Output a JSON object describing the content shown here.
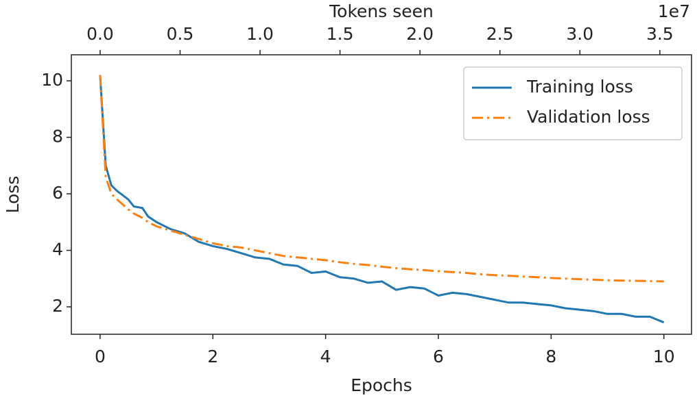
{
  "chart_data": {
    "type": "line",
    "xlabel": "Epochs",
    "ylabel": "Loss",
    "x2label": "Tokens seen",
    "x2_offset_label": "1e7",
    "x": [
      0,
      0.1,
      0.2,
      0.3,
      0.5,
      0.6,
      0.75,
      0.85,
      1.0,
      1.25,
      1.5,
      1.75,
      2.0,
      2.25,
      2.5,
      2.75,
      3.0,
      3.25,
      3.5,
      3.75,
      4.0,
      4.25,
      4.5,
      4.75,
      5.0,
      5.25,
      5.5,
      5.75,
      6.0,
      6.25,
      6.5,
      6.75,
      7.0,
      7.25,
      7.5,
      7.75,
      8.0,
      8.25,
      8.5,
      8.75,
      9.0,
      9.25,
      9.5,
      9.75,
      10.0
    ],
    "series": [
      {
        "name": "Training loss",
        "color": "#1f77b4",
        "linestyle": "solid",
        "values": [
          10.2,
          7.0,
          6.3,
          6.1,
          5.8,
          5.55,
          5.5,
          5.2,
          5.0,
          4.75,
          4.6,
          4.3,
          4.15,
          4.05,
          3.9,
          3.75,
          3.7,
          3.5,
          3.45,
          3.2,
          3.25,
          3.05,
          3.0,
          2.85,
          2.9,
          2.6,
          2.7,
          2.65,
          2.4,
          2.5,
          2.45,
          2.35,
          2.25,
          2.15,
          2.15,
          2.1,
          2.05,
          1.95,
          1.9,
          1.85,
          1.75,
          1.75,
          1.65,
          1.65,
          1.45
        ]
      },
      {
        "name": "Validation loss",
        "color": "#ff7f0e",
        "linestyle": "dashdot",
        "values": [
          10.2,
          6.6,
          6.0,
          5.8,
          5.45,
          5.3,
          5.15,
          5.0,
          4.85,
          4.7,
          4.55,
          4.4,
          4.25,
          4.15,
          4.1,
          4.0,
          3.9,
          3.8,
          3.75,
          3.7,
          3.65,
          3.58,
          3.52,
          3.48,
          3.42,
          3.37,
          3.33,
          3.3,
          3.26,
          3.23,
          3.2,
          3.15,
          3.12,
          3.1,
          3.07,
          3.05,
          3.02,
          3.0,
          2.98,
          2.96,
          2.94,
          2.93,
          2.92,
          2.91,
          2.9
        ]
      }
    ],
    "xlim": [
      -0.51,
      10.49
    ],
    "xticks": [
      0,
      2,
      4,
      6,
      8,
      10
    ],
    "ylim": [
      1.03,
      10.92
    ],
    "yticks": [
      2,
      4,
      6,
      8,
      10
    ],
    "x2lim": [
      -0.18,
      3.698
    ],
    "x2ticks": [
      {
        "value": 0,
        "label": "0.0"
      },
      {
        "value": 0.5,
        "label": "0.5"
      },
      {
        "value": 1,
        "label": "1.0"
      },
      {
        "value": 1.5,
        "label": "1.5"
      },
      {
        "value": 2,
        "label": "2.0"
      },
      {
        "value": 2.5,
        "label": "2.5"
      },
      {
        "value": 3,
        "label": "3.0"
      },
      {
        "value": 3.5,
        "label": "3.5"
      }
    ],
    "legend": "upper right",
    "grid": false
  }
}
